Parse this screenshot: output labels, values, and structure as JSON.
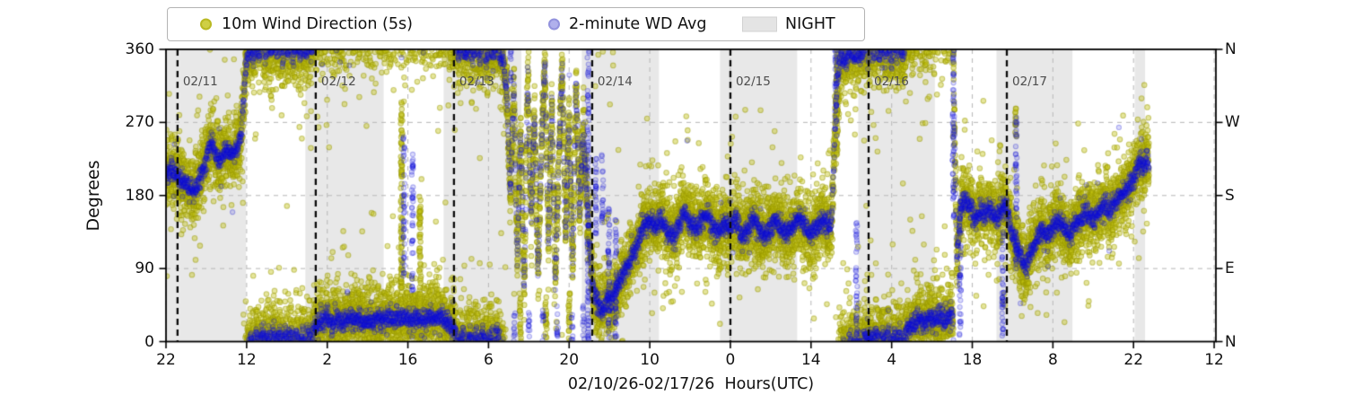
{
  "chart_data": {
    "type": "scatter",
    "title": "",
    "xlabel": "02/10/26-02/17/26  Hours(UTC)",
    "ylabel": "Degrees",
    "xlim": [
      0,
      182.3
    ],
    "ylim": [
      0,
      360
    ],
    "grid": {
      "horizontal_deg": [
        90,
        180,
        270
      ],
      "vertical_at_xticks": true,
      "style": "dashed"
    },
    "legend_position": "top",
    "legend": [
      {
        "label": "10m Wind Direction (5s)",
        "marker": "dot",
        "color": "#cfcf45"
      },
      {
        "label": "2-minute WD Avg",
        "marker": "dot",
        "color": "#b0b0ec"
      },
      {
        "label": "NIGHT",
        "marker": "patch",
        "color": "#e4e4e4"
      }
    ],
    "xticks": [
      {
        "t": 0,
        "label": "22"
      },
      {
        "t": 14,
        "label": "12"
      },
      {
        "t": 28,
        "label": "2"
      },
      {
        "t": 42,
        "label": "16"
      },
      {
        "t": 56,
        "label": "6"
      },
      {
        "t": 70,
        "label": "20"
      },
      {
        "t": 84,
        "label": "10"
      },
      {
        "t": 98,
        "label": "0"
      },
      {
        "t": 112,
        "label": "14"
      },
      {
        "t": 126,
        "label": "4"
      },
      {
        "t": 140,
        "label": "18"
      },
      {
        "t": 154,
        "label": "8"
      },
      {
        "t": 168,
        "label": "22"
      },
      {
        "t": 182,
        "label": "12"
      }
    ],
    "yticks": [
      {
        "deg": 0,
        "label": "0"
      },
      {
        "deg": 90,
        "label": "90"
      },
      {
        "deg": 180,
        "label": "180"
      },
      {
        "deg": 270,
        "label": "270"
      },
      {
        "deg": 360,
        "label": "360"
      }
    ],
    "yticks_right": [
      {
        "deg": 360,
        "label": "N"
      },
      {
        "deg": 270,
        "label": "W"
      },
      {
        "deg": 180,
        "label": "S"
      },
      {
        "deg": 90,
        "label": "E"
      },
      {
        "deg": 0,
        "label": "N"
      }
    ],
    "day_lines": [
      {
        "t": 2,
        "label": "02/11"
      },
      {
        "t": 26,
        "label": "02/12"
      },
      {
        "t": 50,
        "label": "02/13"
      },
      {
        "t": 74,
        "label": "02/14"
      },
      {
        "t": 98,
        "label": "02/15"
      },
      {
        "t": 122,
        "label": "02/16"
      },
      {
        "t": 146,
        "label": "02/17"
      }
    ],
    "night_spans": [
      [
        0,
        13.9
      ],
      [
        24.2,
        37.8
      ],
      [
        48.2,
        61.7
      ],
      [
        72.2,
        85.6
      ],
      [
        96.2,
        109.6
      ],
      [
        120.2,
        133.5
      ],
      [
        144.2,
        157.4
      ],
      [
        168.2,
        170
      ]
    ],
    "colors": {
      "wind5s_fill": "rgba(193,193,16,0.42)",
      "wind5s_edge": "rgba(150,150,0,0.45)",
      "wdavg_fill": "rgba(30,30,230,0.16)",
      "wdavg_edge": "rgba(10,10,210,0.28)",
      "night": "#e8e8e8",
      "grid": "#bcbcbc",
      "dayline": "#0a0a0a",
      "date_label": "#4d4d4d",
      "spine": "#000000"
    },
    "series": [
      {
        "name": "10m Wind Direction (5s)",
        "sample_step_h": 0.012,
        "sigma_deg": 20,
        "outlier_frac": 0.08,
        "outlier_sigma": 55,
        "radius": 2.8
      },
      {
        "name": "2-minute WD Avg",
        "sample_step_h": 0.033,
        "sigma_deg": 6.5,
        "outlier_frac": 0.015,
        "outlier_sigma": 28,
        "radius": 2.6
      }
    ],
    "wd_track": [
      [
        0,
        205
      ],
      [
        0.8,
        212
      ],
      [
        1.6,
        208
      ],
      [
        2.4,
        200
      ],
      [
        3.2,
        196
      ],
      [
        4,
        190
      ],
      [
        4.8,
        184
      ],
      [
        5.6,
        192
      ],
      [
        6.4,
        214
      ],
      [
        7.2,
        230
      ],
      [
        7.9,
        248
      ],
      [
        8.5,
        236
      ],
      [
        9.2,
        222
      ],
      [
        10,
        230
      ],
      [
        10.8,
        236
      ],
      [
        11.6,
        228
      ],
      [
        12.4,
        240
      ],
      [
        13,
        252
      ],
      [
        13.4,
        285
      ],
      [
        13.8,
        335
      ],
      [
        14.2,
        352
      ],
      [
        14.7,
        368
      ],
      [
        15.2,
        350
      ],
      [
        15.7,
        371
      ],
      [
        16.2,
        353
      ],
      [
        16.7,
        372
      ],
      [
        17.2,
        351
      ],
      [
        17.7,
        369
      ],
      [
        18.2,
        354
      ],
      [
        18.7,
        373
      ],
      [
        19.2,
        352
      ],
      [
        19.7,
        370
      ],
      [
        20.2,
        350
      ],
      [
        20.7,
        371
      ],
      [
        21.2,
        353
      ],
      [
        21.7,
        372
      ],
      [
        22.2,
        351
      ],
      [
        22.7,
        369
      ],
      [
        23.2,
        352
      ],
      [
        23.7,
        371
      ],
      [
        24.2,
        354
      ],
      [
        24.7,
        372
      ],
      [
        25.2,
        356
      ],
      [
        25.7,
        374
      ],
      [
        26.4,
        380
      ],
      [
        27.2,
        386
      ],
      [
        28,
        392
      ],
      [
        28.8,
        383
      ],
      [
        29.6,
        389
      ],
      [
        30.4,
        381
      ],
      [
        31.2,
        386
      ],
      [
        32,
        391
      ],
      [
        32.8,
        384
      ],
      [
        33.6,
        390
      ],
      [
        34.4,
        382
      ],
      [
        35.2,
        388
      ],
      [
        36,
        383
      ],
      [
        36.8,
        389
      ],
      [
        37.6,
        385
      ],
      [
        38.5,
        391
      ],
      [
        39.3,
        388
      ],
      [
        40.1,
        392
      ],
      [
        40.9,
        387
      ],
      [
        41.7,
        391
      ],
      [
        42.5,
        386
      ],
      [
        43.3,
        390
      ],
      [
        44.1,
        387
      ],
      [
        44.9,
        384
      ],
      [
        45.7,
        390
      ],
      [
        46.5,
        386
      ],
      [
        47.3,
        391
      ],
      [
        48.1,
        387
      ],
      [
        48.9,
        383
      ],
      [
        49.7,
        378
      ],
      [
        50.3,
        371
      ],
      [
        50.9,
        355
      ],
      [
        51.5,
        370
      ],
      [
        52.1,
        352
      ],
      [
        52.7,
        369
      ],
      [
        53.3,
        351
      ],
      [
        53.9,
        371
      ],
      [
        54.5,
        353
      ],
      [
        55.1,
        372
      ],
      [
        55.7,
        350
      ],
      [
        56.3,
        370
      ],
      [
        56.9,
        352
      ],
      [
        57.5,
        371
      ],
      [
        58.1,
        353
      ],
      [
        58.6,
        347
      ],
      [
        59.2,
        300
      ],
      [
        59.8,
        180
      ],
      [
        60.4,
        320
      ],
      [
        61,
        100
      ],
      [
        61.6,
        260
      ],
      [
        62.2,
        60
      ],
      [
        62.8,
        330
      ],
      [
        63.4,
        150
      ],
      [
        64,
        280
      ],
      [
        64.6,
        80
      ],
      [
        65.2,
        240
      ],
      [
        65.8,
        350
      ],
      [
        66.4,
        120
      ],
      [
        67,
        300
      ],
      [
        67.6,
        70
      ],
      [
        68.2,
        220
      ],
      [
        68.8,
        340
      ],
      [
        69.4,
        130
      ],
      [
        70,
        280
      ],
      [
        70.6,
        90
      ],
      [
        71.2,
        320
      ],
      [
        71.8,
        160
      ],
      [
        72.4,
        250
      ],
      [
        73,
        190
      ],
      [
        73.6,
        120
      ],
      [
        74.2,
        62
      ],
      [
        75,
        46
      ],
      [
        75.8,
        38
      ],
      [
        76.6,
        56
      ],
      [
        77.4,
        48
      ],
      [
        78.2,
        66
      ],
      [
        79,
        80
      ],
      [
        79.8,
        88
      ],
      [
        80.6,
        98
      ],
      [
        81.4,
        112
      ],
      [
        82.2,
        128
      ],
      [
        83,
        142
      ],
      [
        84,
        150
      ],
      [
        85,
        142
      ],
      [
        86,
        152
      ],
      [
        87,
        138
      ],
      [
        88,
        130
      ],
      [
        89,
        145
      ],
      [
        90,
        158
      ],
      [
        91,
        150
      ],
      [
        92,
        138
      ],
      [
        93,
        148
      ],
      [
        94,
        155
      ],
      [
        95,
        142
      ],
      [
        96,
        135
      ],
      [
        97,
        146
      ],
      [
        98,
        140
      ],
      [
        99,
        150
      ],
      [
        100,
        128
      ],
      [
        101,
        140
      ],
      [
        102,
        152
      ],
      [
        103,
        138
      ],
      [
        104,
        128
      ],
      [
        105,
        142
      ],
      [
        106,
        150
      ],
      [
        107,
        138
      ],
      [
        108,
        132
      ],
      [
        109,
        144
      ],
      [
        110,
        152
      ],
      [
        111,
        140
      ],
      [
        112,
        132
      ],
      [
        113,
        142
      ],
      [
        114,
        150
      ],
      [
        115,
        140
      ],
      [
        115.6,
        148
      ],
      [
        116.1,
        250
      ],
      [
        116.6,
        322
      ],
      [
        117.2,
        356
      ],
      [
        118,
        348
      ],
      [
        118.8,
        357
      ],
      [
        119.6,
        350
      ],
      [
        120.4,
        358
      ],
      [
        121,
        352
      ],
      [
        121.4,
        371
      ],
      [
        121.9,
        350
      ],
      [
        122.4,
        370
      ],
      [
        122.9,
        353
      ],
      [
        123.4,
        373
      ],
      [
        123.9,
        351
      ],
      [
        124.4,
        371
      ],
      [
        124.9,
        352
      ],
      [
        125.4,
        372
      ],
      [
        125.9,
        350
      ],
      [
        126.4,
        371
      ],
      [
        126.9,
        353
      ],
      [
        127.4,
        373
      ],
      [
        127.9,
        351
      ],
      [
        128.4,
        370
      ],
      [
        128.7,
        374
      ],
      [
        129.4,
        377
      ],
      [
        130.2,
        382
      ],
      [
        131,
        388
      ],
      [
        131.8,
        382
      ],
      [
        132.6,
        390
      ],
      [
        133.4,
        384
      ],
      [
        134.2,
        392
      ],
      [
        135,
        386
      ],
      [
        135.8,
        390
      ],
      [
        136.6,
        396
      ],
      [
        137.3,
        100
      ],
      [
        138,
        165
      ],
      [
        138.7,
        176
      ],
      [
        139.4,
        168
      ],
      [
        140.1,
        158
      ],
      [
        140.8,
        150
      ],
      [
        141.5,
        163
      ],
      [
        142.2,
        155
      ],
      [
        142.9,
        166
      ],
      [
        143.6,
        158
      ],
      [
        144.3,
        152
      ],
      [
        145,
        163
      ],
      [
        145.7,
        168
      ],
      [
        146.3,
        158
      ],
      [
        146.9,
        132
      ],
      [
        147.5,
        118
      ],
      [
        148.1,
        112
      ],
      [
        148.7,
        100
      ],
      [
        149.3,
        92
      ],
      [
        149.9,
        106
      ],
      [
        150.6,
        118
      ],
      [
        151.3,
        130
      ],
      [
        152,
        138
      ],
      [
        153,
        130
      ],
      [
        154,
        143
      ],
      [
        155,
        150
      ],
      [
        156,
        140
      ],
      [
        157,
        132
      ],
      [
        158,
        145
      ],
      [
        159,
        152
      ],
      [
        160,
        158
      ],
      [
        161,
        150
      ],
      [
        162,
        161
      ],
      [
        163,
        168
      ],
      [
        164,
        162
      ],
      [
        165,
        173
      ],
      [
        166,
        180
      ],
      [
        167,
        188
      ],
      [
        167.8,
        198
      ],
      [
        168.6,
        212
      ],
      [
        169.2,
        224
      ],
      [
        169.8,
        215
      ],
      [
        170.3,
        227
      ],
      [
        170.7,
        219
      ]
    ],
    "event_columns": [
      [
        40.9,
        60,
        305,
        0
      ],
      [
        41.3,
        80,
        258,
        1
      ],
      [
        42.8,
        55,
        235,
        1
      ],
      [
        44.1,
        30,
        185,
        0
      ],
      [
        59.8,
        320,
        360,
        1
      ],
      [
        60.5,
        0,
        40,
        1
      ],
      [
        61.5,
        0,
        60,
        0
      ],
      [
        63,
        0,
        45,
        1
      ],
      [
        65.5,
        0,
        40,
        1
      ],
      [
        66,
        0,
        55,
        0
      ],
      [
        68,
        0,
        45,
        1
      ],
      [
        70,
        0,
        60,
        0
      ],
      [
        70.5,
        0,
        40,
        1
      ],
      [
        72.5,
        0,
        45,
        1
      ],
      [
        73.3,
        0,
        360,
        1
      ],
      [
        74.6,
        130,
        240,
        1
      ],
      [
        75.8,
        145,
        232,
        1
      ],
      [
        76.9,
        0,
        165,
        1
      ],
      [
        78.1,
        0,
        150,
        1
      ],
      [
        116.3,
        250,
        360,
        1
      ],
      [
        116.5,
        230,
        360,
        0
      ],
      [
        119.9,
        0,
        150,
        1
      ],
      [
        136.7,
        150,
        362,
        1
      ],
      [
        137.9,
        0,
        178,
        1
      ],
      [
        145.3,
        0,
        160,
        1
      ],
      [
        147.6,
        88,
        278,
        1
      ],
      [
        147.6,
        252,
        290,
        0
      ]
    ]
  }
}
